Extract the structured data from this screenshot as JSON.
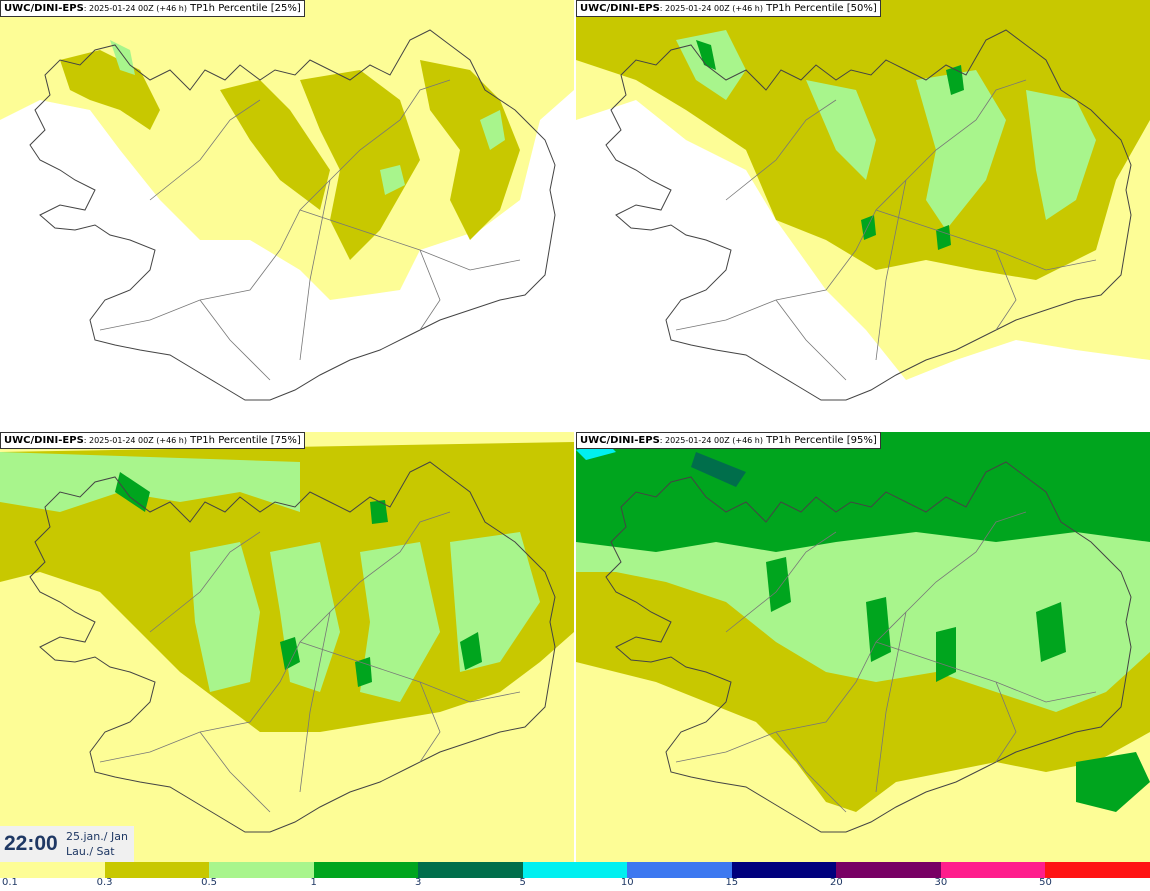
{
  "panels": [
    {
      "source": "UWC/DINI-EPS",
      "run": ": 2025-01-24 00Z (+46 h)",
      "field": "TP1h Percentile [25%]"
    },
    {
      "source": "UWC/DINI-EPS",
      "run": ": 2025-01-24 00Z (+46 h)",
      "field": "TP1h Percentile [50%]"
    },
    {
      "source": "UWC/DINI-EPS",
      "run": ": 2025-01-24 00Z (+46 h)",
      "field": "TP1h Percentile [75%]"
    },
    {
      "source": "UWC/DINI-EPS",
      "run": ": 2025-01-24 00Z (+46 h)",
      "field": "TP1h Percentile [95%]"
    }
  ],
  "time": {
    "clock": "22:00",
    "date_line": "25.jan./ Jan",
    "day_line": "Lau./ Sat"
  },
  "legend": {
    "ticks": [
      "0.1",
      "0.3",
      "0.5",
      "1",
      "3",
      "5",
      "10",
      "15",
      "20",
      "30",
      "50"
    ],
    "colors": [
      "#fdfd96",
      "#c8c800",
      "#a8f58c",
      "#00a51e",
      "#006e4b",
      "#00f0f0",
      "#3c78f0",
      "#00007d",
      "#780064",
      "#ff1e8c",
      "#ff1414"
    ]
  }
}
